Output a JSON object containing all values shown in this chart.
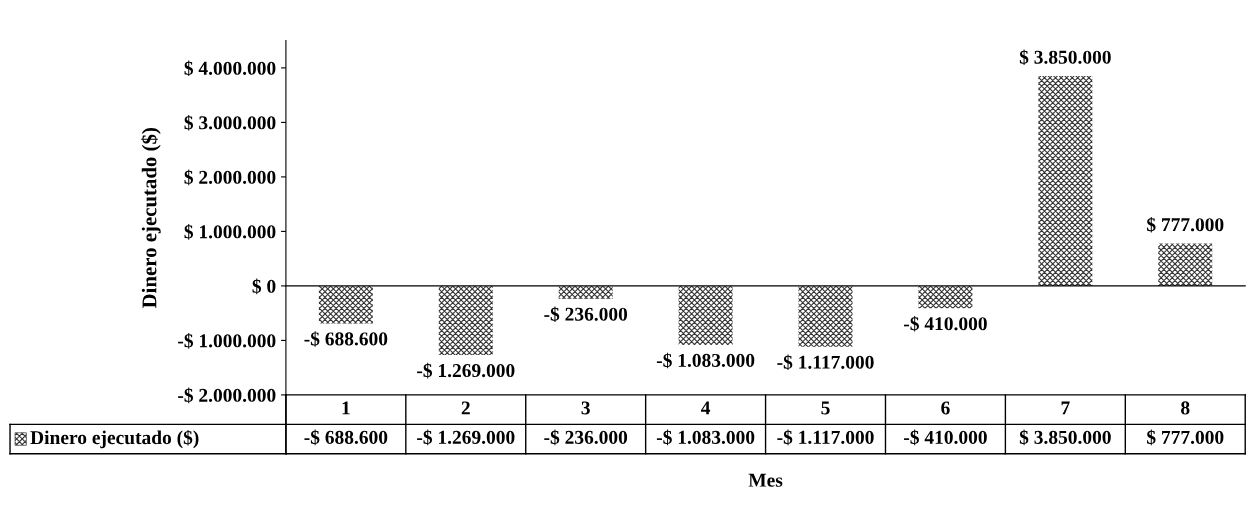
{
  "chart_data": {
    "type": "bar",
    "xlabel": "Mes",
    "ylabel": "Dinero ejecutado ($)",
    "categories": [
      "1",
      "2",
      "3",
      "4",
      "5",
      "6",
      "7",
      "8"
    ],
    "series": [
      {
        "name": "Dinero ejecutado ($)",
        "color": "#333333",
        "values": [
          -688600,
          -1269000,
          -236000,
          -1083000,
          -1117000,
          -410000,
          3850000,
          777000
        ],
        "value_labels": [
          "-$ 688.600",
          "-$ 1.269.000",
          "-$ 236.000",
          "-$ 1.083.000",
          "-$ 1.117.000",
          "-$ 410.000",
          "$ 3.850.000",
          "$ 777.000"
        ]
      }
    ],
    "ylim": [
      -2000000,
      4500000
    ],
    "yticks": [
      {
        "value": -2000000,
        "label": "-$ 2.000.000"
      },
      {
        "value": -1000000,
        "label": "-$ 1.000.000"
      },
      {
        "value": 0,
        "label": "$ 0"
      },
      {
        "value": 1000000,
        "label": "$ 1.000.000"
      },
      {
        "value": 2000000,
        "label": "$ 2.000.000"
      },
      {
        "value": 3000000,
        "label": "$ 3.000.000"
      },
      {
        "value": 4000000,
        "label": "$ 4.000.000"
      }
    ]
  }
}
